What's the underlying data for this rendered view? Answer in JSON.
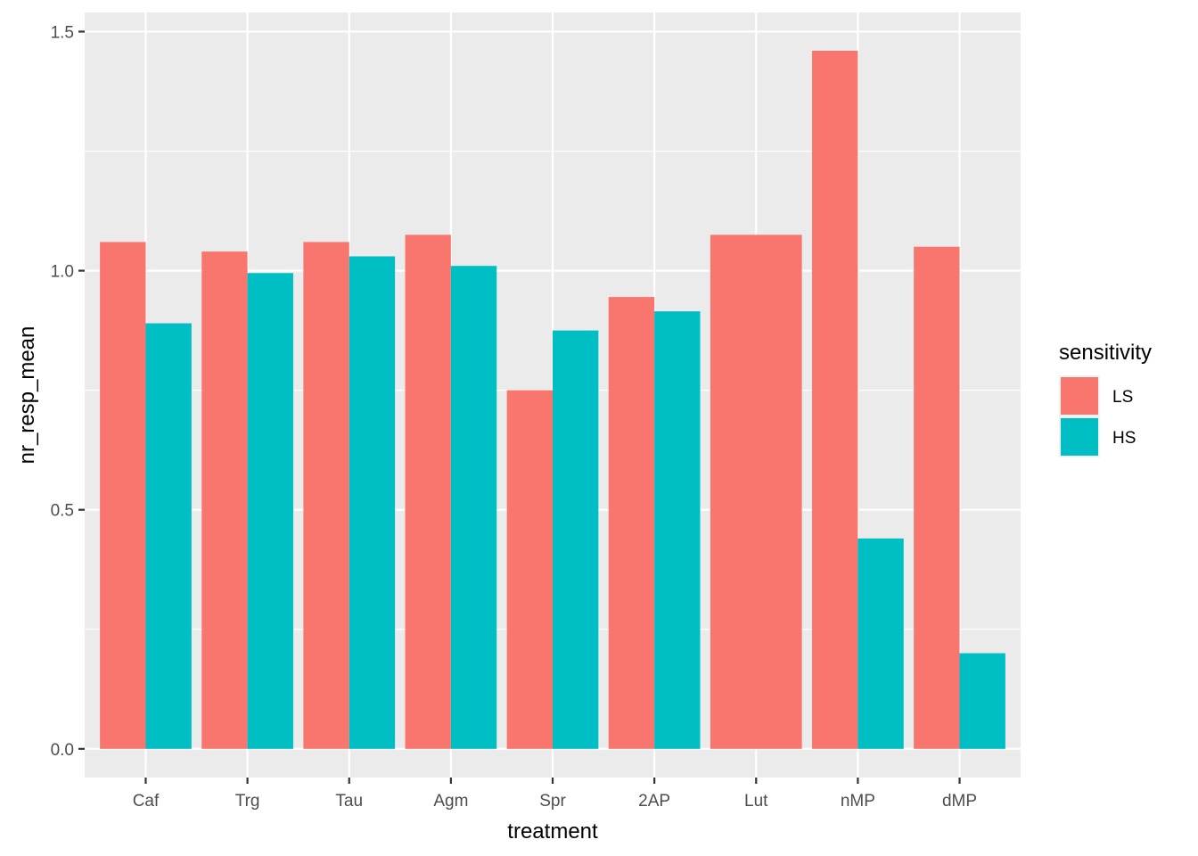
{
  "chart_data": {
    "type": "bar",
    "categories": [
      "Caf",
      "Trg",
      "Tau",
      "Agm",
      "Spr",
      "2AP",
      "Lut",
      "nMP",
      "dMP"
    ],
    "series": [
      {
        "name": "LS",
        "color": "#F8766D",
        "values": [
          1.06,
          1.04,
          1.06,
          1.075,
          0.75,
          0.945,
          1.075,
          1.46,
          1.05
        ]
      },
      {
        "name": "HS",
        "color": "#00BFC4",
        "values": [
          0.89,
          0.995,
          1.03,
          1.01,
          0.875,
          0.915,
          null,
          0.44,
          0.2
        ]
      }
    ],
    "xlabel": "treatment",
    "ylabel": "nr_resp_mean",
    "ylim": [
      -0.06,
      1.54
    ],
    "yticks": [
      0.0,
      0.5,
      1.0,
      1.5
    ],
    "ytick_labels": [
      "0.0",
      "0.5",
      "1.0",
      "1.5"
    ],
    "legend_title": "sensitivity",
    "legend_position": "right",
    "grid": true,
    "panel_color": "#EBEBEB"
  }
}
